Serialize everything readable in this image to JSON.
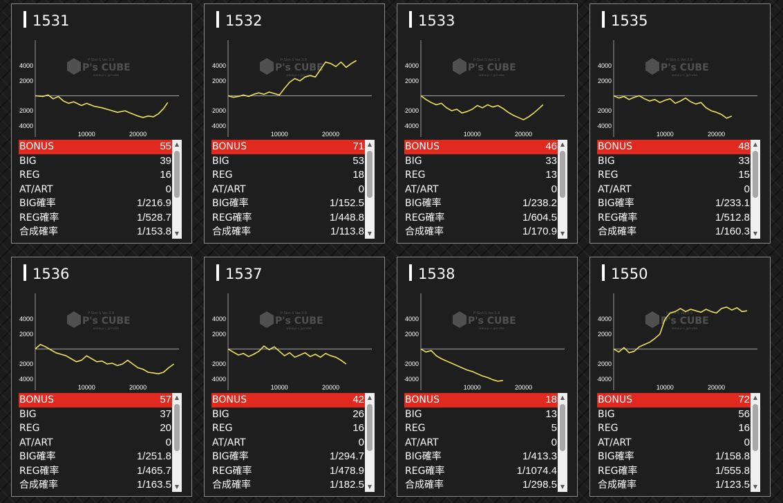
{
  "colors": {
    "line": "#ede35a",
    "bonus_bg": "#e02a20",
    "panel_bg": "#1e1e1e",
    "border": "#8a8a8a"
  },
  "row_labels": [
    "BONUS",
    "BIG",
    "REG",
    "AT/ART",
    "BIG確率",
    "REG確率",
    "合成確率"
  ],
  "watermark": {
    "logo": "P's CUBE",
    "line1": "P-Slot-S Ver.3.9",
    "line2": "www.p-c.jp/cube"
  },
  "machines": [
    {
      "id": "1531",
      "stats": [
        "55",
        "39",
        "16",
        "0",
        "1/216.9",
        "1/528.7",
        "1/153.8"
      ]
    },
    {
      "id": "1532",
      "stats": [
        "71",
        "53",
        "18",
        "0",
        "1/152.5",
        "1/448.8",
        "1/113.8"
      ]
    },
    {
      "id": "1533",
      "stats": [
        "46",
        "33",
        "13",
        "0",
        "1/238.2",
        "1/604.5",
        "1/170.9"
      ]
    },
    {
      "id": "1535",
      "stats": [
        "48",
        "33",
        "15",
        "0",
        "1/233.1",
        "1/512.8",
        "1/160.3"
      ]
    },
    {
      "id": "1536",
      "stats": [
        "57",
        "37",
        "20",
        "0",
        "1/251.8",
        "1/465.7",
        "1/163.5"
      ]
    },
    {
      "id": "1537",
      "stats": [
        "42",
        "26",
        "16",
        "0",
        "1/294.7",
        "1/478.9",
        "1/182.5"
      ]
    },
    {
      "id": "1538",
      "stats": [
        "18",
        "13",
        "5",
        "0",
        "1/413.3",
        "1/1074.4",
        "1/298.5"
      ]
    },
    {
      "id": "1550",
      "stats": [
        "72",
        "56",
        "16",
        "0",
        "1/158.8",
        "1/555.8",
        "1/123.5"
      ]
    }
  ],
  "chart_data": [
    {
      "type": "line",
      "title": "1531",
      "xlim": [
        0,
        28000
      ],
      "ylim": [
        -5500,
        6500
      ],
      "yticks": [
        4000,
        2000,
        -2000,
        -4000
      ],
      "xticks": [
        10000,
        20000
      ],
      "grid": false,
      "x": [
        0,
        1500,
        2500,
        3500,
        4500,
        5500,
        6500,
        7500,
        9000,
        10000,
        11500,
        13000,
        14500,
        16000,
        17500,
        18500,
        20000,
        21000,
        22000,
        23000,
        24000,
        25000,
        25800
      ],
      "y": [
        0,
        -100,
        100,
        -400,
        -100,
        -700,
        -1000,
        -800,
        -1300,
        -1000,
        -1400,
        -1600,
        -1900,
        -2200,
        -2000,
        -2300,
        -2700,
        -2900,
        -2700,
        -2800,
        -2400,
        -1700,
        -900
      ]
    },
    {
      "type": "line",
      "title": "1532",
      "xlim": [
        0,
        28000
      ],
      "ylim": [
        -5500,
        6500
      ],
      "yticks": [
        4000,
        2000,
        -2000,
        -4000
      ],
      "xticks": [
        10000,
        20000
      ],
      "grid": false,
      "x": [
        0,
        1000,
        2000,
        3000,
        4000,
        5000,
        6000,
        7000,
        8000,
        9000,
        10000,
        11000,
        12000,
        13000,
        14000,
        15000,
        16000,
        17000,
        18000,
        19000,
        20000,
        21000,
        22000,
        23000,
        24000,
        25000
      ],
      "y": [
        0,
        -200,
        -100,
        100,
        -100,
        200,
        400,
        200,
        500,
        300,
        100,
        1000,
        1800,
        2300,
        2000,
        2500,
        2700,
        2500,
        3500,
        4500,
        4300,
        3900,
        4500,
        3800,
        4300,
        4700
      ]
    },
    {
      "type": "line",
      "title": "1533",
      "xlim": [
        0,
        28000
      ],
      "ylim": [
        -5500,
        6500
      ],
      "yticks": [
        4000,
        2000,
        -2000,
        -4000
      ],
      "xticks": [
        10000,
        20000
      ],
      "grid": false,
      "x": [
        0,
        1000,
        2000,
        3000,
        4000,
        5000,
        6000,
        7000,
        8000,
        9000,
        10000,
        11000,
        12000,
        13000,
        14000,
        15000,
        16000,
        17000,
        18000,
        19000,
        20000,
        21000,
        22000,
        23000,
        23800
      ],
      "y": [
        0,
        -500,
        -900,
        -1200,
        -1000,
        -1600,
        -2000,
        -1800,
        -2300,
        -2100,
        -1800,
        -1300,
        -1600,
        -1200,
        -1500,
        -1300,
        -1700,
        -2200,
        -2600,
        -2900,
        -3200,
        -2800,
        -2300,
        -1700,
        -1200
      ]
    },
    {
      "type": "line",
      "title": "1535",
      "xlim": [
        0,
        28000
      ],
      "ylim": [
        -5500,
        6500
      ],
      "yticks": [
        4000,
        2000,
        -2000,
        -4000
      ],
      "xticks": [
        10000,
        20000
      ],
      "grid": false,
      "x": [
        0,
        1000,
        2000,
        3000,
        4000,
        5000,
        6000,
        7000,
        8000,
        9000,
        10000,
        11000,
        12000,
        13000,
        14000,
        15000,
        16000,
        17000,
        18000,
        19000,
        20000,
        21000,
        22000,
        23000
      ],
      "y": [
        0,
        -300,
        -100,
        -500,
        -200,
        0,
        -400,
        -700,
        -500,
        -900,
        -600,
        -400,
        -1000,
        -700,
        -300,
        -800,
        -1100,
        -900,
        -1600,
        -2000,
        -2200,
        -2500,
        -3000,
        -2700
      ]
    },
    {
      "type": "line",
      "title": "1536",
      "xlim": [
        0,
        28000
      ],
      "ylim": [
        -5500,
        6500
      ],
      "yticks": [
        4000,
        2000,
        -2000,
        -4000
      ],
      "xticks": [
        10000,
        20000
      ],
      "grid": false,
      "x": [
        0,
        1000,
        2000,
        3000,
        4000,
        5000,
        6000,
        7000,
        8000,
        9000,
        10000,
        11000,
        12000,
        13000,
        14000,
        15000,
        16000,
        17000,
        18000,
        19000,
        20000,
        21000,
        22000,
        23000,
        24000,
        25000,
        26000,
        27000
      ],
      "y": [
        0,
        600,
        300,
        -100,
        -500,
        -700,
        -900,
        -1300,
        -1700,
        -1500,
        -900,
        -1300,
        -1700,
        -1600,
        -2000,
        -1900,
        -2200,
        -2000,
        -1500,
        -2000,
        -2500,
        -2700,
        -3100,
        -3200,
        -3300,
        -3100,
        -2500,
        -2000
      ]
    },
    {
      "type": "line",
      "title": "1537",
      "xlim": [
        0,
        28000
      ],
      "ylim": [
        -5500,
        6500
      ],
      "yticks": [
        4000,
        2000,
        -2000,
        -4000
      ],
      "xticks": [
        10000,
        20000
      ],
      "grid": false,
      "x": [
        0,
        1000,
        2000,
        3000,
        4000,
        5000,
        6000,
        7000,
        8000,
        9000,
        10000,
        11000,
        12000,
        13000,
        14000,
        15000,
        16000,
        17000,
        18000,
        19000,
        20000,
        21000,
        22000,
        23000
      ],
      "y": [
        0,
        -400,
        -800,
        -600,
        -1000,
        -700,
        -300,
        400,
        -100,
        300,
        -300,
        -900,
        -500,
        -1100,
        -800,
        -500,
        -1000,
        -700,
        -1100,
        -600,
        -900,
        -1100,
        -1500,
        -2000
      ]
    },
    {
      "type": "line",
      "title": "1538",
      "xlim": [
        0,
        28000
      ],
      "ylim": [
        -5500,
        6500
      ],
      "yticks": [
        4000,
        2000,
        -2000,
        -4000
      ],
      "xticks": [
        10000,
        20000
      ],
      "grid": false,
      "x": [
        0,
        1000,
        2000,
        3000,
        4000,
        5000,
        6000,
        7000,
        8000,
        9000,
        10000,
        11000,
        12000,
        13000,
        14000,
        15000,
        16000
      ],
      "y": [
        0,
        -400,
        -200,
        -900,
        -1300,
        -1600,
        -1900,
        -2200,
        -2500,
        -2800,
        -3000,
        -3300,
        -3600,
        -3800,
        -4100,
        -4300,
        -4200
      ]
    },
    {
      "type": "line",
      "title": "1550",
      "xlim": [
        0,
        28000
      ],
      "ylim": [
        -5500,
        6500
      ],
      "yticks": [
        4000,
        2000,
        -2000,
        -4000
      ],
      "xticks": [
        10000,
        20000
      ],
      "grid": false,
      "x": [
        0,
        1000,
        2000,
        3000,
        4000,
        5000,
        6000,
        7000,
        8000,
        9000,
        10000,
        11000,
        12000,
        13000,
        14000,
        15000,
        16000,
        17000,
        18000,
        19000,
        20000,
        21000,
        22000,
        23000,
        24000,
        25000,
        26000
      ],
      "y": [
        0,
        -400,
        200,
        -500,
        -300,
        300,
        600,
        900,
        1400,
        2000,
        4000,
        4800,
        5000,
        5400,
        5000,
        5300,
        5100,
        4900,
        5300,
        5000,
        4800,
        5400,
        5600,
        5200,
        5500,
        5000,
        5100
      ]
    }
  ]
}
